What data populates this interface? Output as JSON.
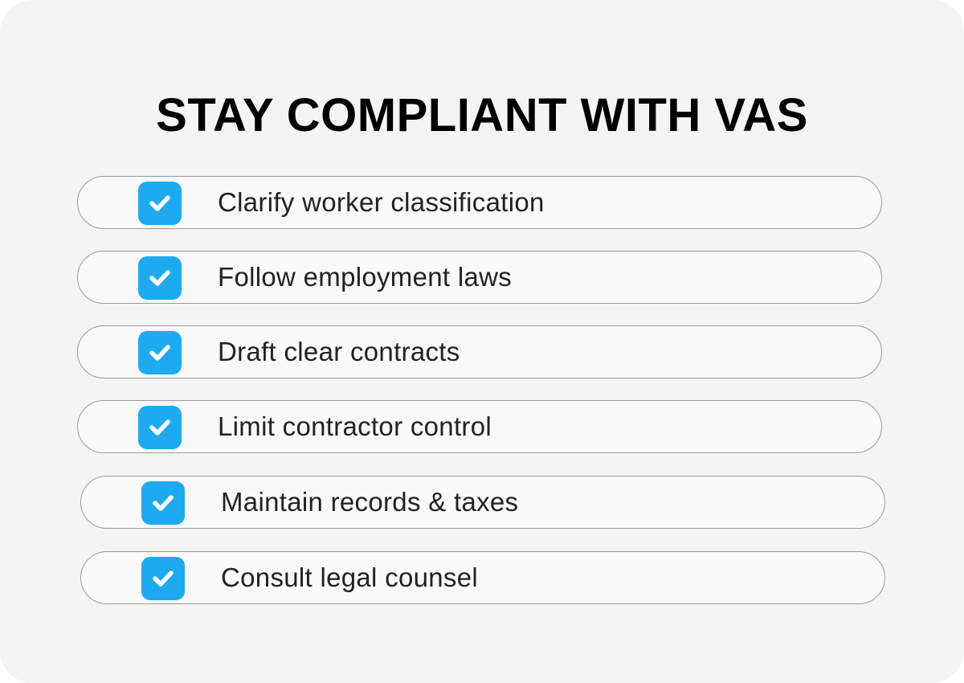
{
  "title": "STAY COMPLIANT WITH VAS",
  "items": [
    {
      "label": "Clarify worker classification",
      "checked": true
    },
    {
      "label": "Follow employment laws",
      "checked": true
    },
    {
      "label": "Draft clear contracts",
      "checked": true
    },
    {
      "label": "Limit contractor control",
      "checked": true
    },
    {
      "label": "Maintain records & taxes",
      "checked": true
    },
    {
      "label": "Consult legal counsel",
      "checked": true
    }
  ],
  "colors": {
    "accent": "#1eaaf1",
    "background": "#f4f4f4"
  }
}
